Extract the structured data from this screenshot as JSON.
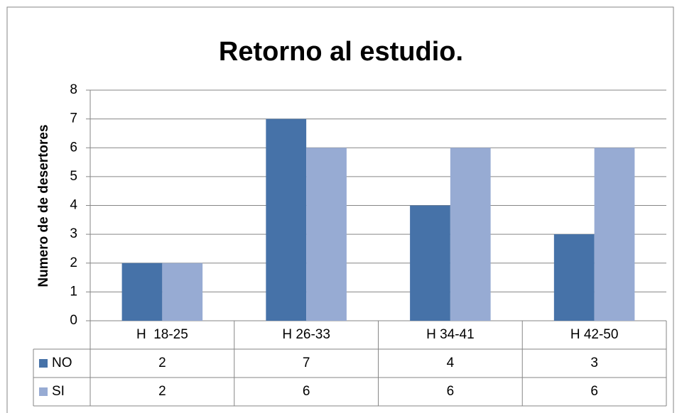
{
  "chart_data": {
    "type": "bar",
    "title": "Retorno al estudio.",
    "y_label": "Numero de de desertores",
    "categories": [
      "H  18-25",
      "H 26-33",
      "H 34-41",
      "H 42-50"
    ],
    "series": [
      {
        "name": "NO",
        "color": "#4672a8",
        "values": [
          2,
          7,
          4,
          3
        ]
      },
      {
        "name": "SI",
        "color": "#97abd3",
        "values": [
          2,
          6,
          6,
          6
        ]
      }
    ],
    "ylim": [
      0,
      8
    ],
    "yticks": [
      0,
      1,
      2,
      3,
      4,
      5,
      6,
      7,
      8
    ],
    "grid": true,
    "data_table": true
  }
}
